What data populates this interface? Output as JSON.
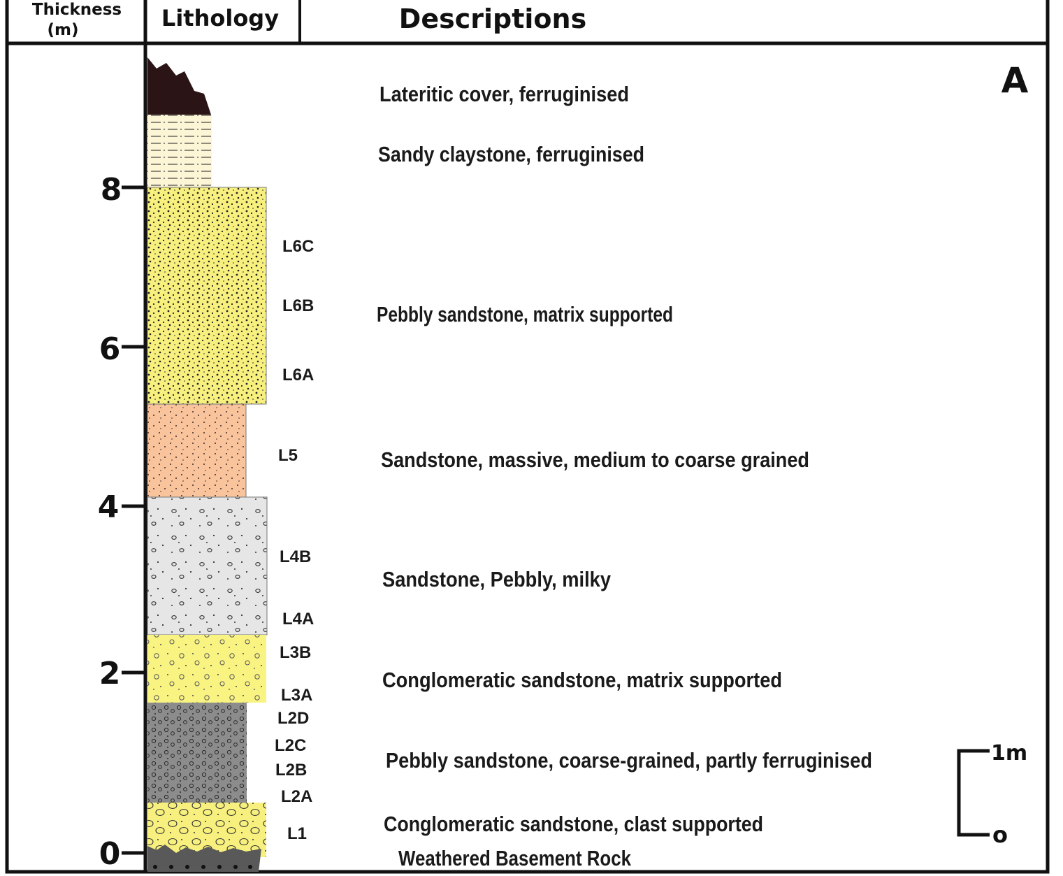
{
  "header": {
    "thickness_line1": "Thickness",
    "thickness_line2": "(m)",
    "lithology": "Lithology",
    "descriptions": "Descriptions"
  },
  "panel_label": "A",
  "axis_ticks": [
    "0",
    "2",
    "4",
    "6",
    "8"
  ],
  "unit_labels": {
    "L6C": "L6C",
    "L6B": "L6B",
    "L6A": "L6A",
    "L5": "L5",
    "L4B": "L4B",
    "L4A": "L4A",
    "L3B": "L3B",
    "L3A": "L3A",
    "L2D": "L2D",
    "L2C": "L2C",
    "L2B": "L2B",
    "L2A": "L2A",
    "L1": "L1"
  },
  "descriptions": {
    "laterite": "Lateritic cover, ferruginised",
    "sandy_claystone": "Sandy claystone, ferruginised",
    "pebbly_sandstone_matrix": "Pebbly sandstone, matrix supported",
    "sandstone_massive": "Sandstone, massive, medium to coarse grained",
    "sandstone_pebbly_milky": "Sandstone, Pebbly, milky",
    "conglomeratic_matrix": "Conglomeratic sandstone, matrix supported",
    "pebbly_coarse": "Pebbly sandstone, coarse-grained, partly ferruginised",
    "conglomeratic_clast": "Conglomeratic sandstone, clast supported",
    "basement": "Weathered Basement Rock"
  },
  "scale_bar": {
    "top_label": "1m",
    "bottom_label": "o"
  },
  "colors": {
    "laterite": "#2b1416",
    "sandy_claystone": "#fdf6d6",
    "pebbly_sandstone_matrix": "#f7f07e",
    "sandstone_massive": "#f9c39c",
    "sandstone_pebbly_milky": "#e6e6e6",
    "conglomeratic_matrix": "#f9f382",
    "pebbly_coarse": "#8c8c8c",
    "conglomeratic_clast": "#f7f07e",
    "basement": "#595959",
    "label_L5": "#3a1212"
  }
}
